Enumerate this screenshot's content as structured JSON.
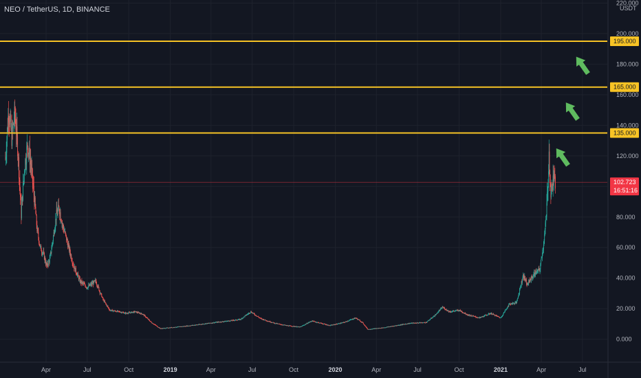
{
  "header": {
    "title": "NEO / TetherUS, 1D, BINANCE"
  },
  "colors": {
    "background": "#131722",
    "grid": "#1e222d",
    "level_line": "#f7c325",
    "candle_up": "#26a69a",
    "candle_down": "#ef5350",
    "price_label": "#f23645",
    "arrow": "#5fbb5f"
  },
  "chart_data": {
    "type": "candlestick",
    "symbol": "NEO / TetherUS",
    "timeframe": "1D",
    "exchange": "BINANCE",
    "currency_label": "USDT",
    "y_ticks": [
      "220.000",
      "200.000",
      "180.000",
      "160.000",
      "140.000",
      "120.000",
      "100.000",
      "80.000",
      "60.000",
      "40.000",
      "20.000",
      "0.000"
    ],
    "ylim": [
      -15,
      222
    ],
    "x_ticks": [
      {
        "label": "Apr",
        "date": "2018-04-01"
      },
      {
        "label": "Jul",
        "date": "2018-07-01"
      },
      {
        "label": "Oct",
        "date": "2018-10-01"
      },
      {
        "label": "2019",
        "date": "2019-01-01",
        "bold": true
      },
      {
        "label": "Apr",
        "date": "2019-04-01"
      },
      {
        "label": "Jul",
        "date": "2019-07-01"
      },
      {
        "label": "Oct",
        "date": "2019-10-01"
      },
      {
        "label": "2020",
        "date": "2020-01-01",
        "bold": true
      },
      {
        "label": "Apr",
        "date": "2020-04-01"
      },
      {
        "label": "Jul",
        "date": "2020-07-01"
      },
      {
        "label": "Oct",
        "date": "2020-10-01"
      },
      {
        "label": "2021",
        "date": "2021-01-01",
        "bold": true
      },
      {
        "label": "Apr",
        "date": "2021-04-01"
      },
      {
        "label": "Jul",
        "date": "2021-07-01"
      }
    ],
    "xlim": [
      "2017-12-20",
      "2021-08-25"
    ],
    "horizontal_levels": [
      {
        "value": 195,
        "label": "195.000"
      },
      {
        "value": 165,
        "label": "165.000"
      },
      {
        "value": 135,
        "label": "135.000"
      }
    ],
    "last_price": {
      "value": 102.723,
      "label": "102.723",
      "countdown": "16:51:16"
    },
    "series": [
      {
        "type": "close_path",
        "points": [
          [
            "2018-01-01",
            118
          ],
          [
            "2018-01-08",
            150
          ],
          [
            "2018-01-15",
            132
          ],
          [
            "2018-01-22",
            148
          ],
          [
            "2018-01-29",
            122
          ],
          [
            "2018-02-05",
            82
          ],
          [
            "2018-02-12",
            112
          ],
          [
            "2018-02-19",
            128
          ],
          [
            "2018-02-26",
            115
          ],
          [
            "2018-03-05",
            95
          ],
          [
            "2018-03-12",
            72
          ],
          [
            "2018-03-19",
            60
          ],
          [
            "2018-03-26",
            56
          ],
          [
            "2018-04-02",
            48
          ],
          [
            "2018-04-09",
            52
          ],
          [
            "2018-04-16",
            65
          ],
          [
            "2018-04-23",
            80
          ],
          [
            "2018-04-30",
            86
          ],
          [
            "2018-05-07",
            75
          ],
          [
            "2018-05-14",
            68
          ],
          [
            "2018-05-21",
            60
          ],
          [
            "2018-06-01",
            48
          ],
          [
            "2018-06-15",
            38
          ],
          [
            "2018-07-01",
            34
          ],
          [
            "2018-07-20",
            38
          ],
          [
            "2018-08-05",
            26
          ],
          [
            "2018-08-20",
            19
          ],
          [
            "2018-09-10",
            18
          ],
          [
            "2018-09-25",
            17
          ],
          [
            "2018-10-15",
            18
          ],
          [
            "2018-11-01",
            16.5
          ],
          [
            "2018-11-20",
            11
          ],
          [
            "2018-12-10",
            7
          ],
          [
            "2018-12-28",
            7.5
          ],
          [
            "2019-02-01",
            8.5
          ],
          [
            "2019-03-01",
            9.5
          ],
          [
            "2019-04-10",
            11
          ],
          [
            "2019-05-10",
            12
          ],
          [
            "2019-06-05",
            13
          ],
          [
            "2019-06-28",
            18
          ],
          [
            "2019-07-20",
            13.5
          ],
          [
            "2019-08-20",
            10.5
          ],
          [
            "2019-09-15",
            9
          ],
          [
            "2019-10-15",
            8
          ],
          [
            "2019-11-10",
            12
          ],
          [
            "2019-12-20",
            9
          ],
          [
            "2020-01-20",
            11
          ],
          [
            "2020-02-15",
            14
          ],
          [
            "2020-03-01",
            11
          ],
          [
            "2020-03-13",
            6.5
          ],
          [
            "2020-04-15",
            7.5
          ],
          [
            "2020-05-15",
            9
          ],
          [
            "2020-06-15",
            10.5
          ],
          [
            "2020-07-20",
            11
          ],
          [
            "2020-08-10",
            16
          ],
          [
            "2020-08-25",
            21
          ],
          [
            "2020-09-10",
            18
          ],
          [
            "2020-10-01",
            19
          ],
          [
            "2020-10-20",
            16
          ],
          [
            "2020-11-15",
            14
          ],
          [
            "2020-12-10",
            17
          ],
          [
            "2021-01-01",
            14
          ],
          [
            "2021-01-20",
            23
          ],
          [
            "2021-02-05",
            24
          ],
          [
            "2021-02-20",
            42
          ],
          [
            "2021-03-01",
            36
          ],
          [
            "2021-03-10",
            40
          ],
          [
            "2021-03-20",
            44
          ],
          [
            "2021-03-28",
            45
          ],
          [
            "2021-04-05",
            60
          ],
          [
            "2021-04-12",
            80
          ],
          [
            "2021-04-18",
            120
          ],
          [
            "2021-04-22",
            95
          ],
          [
            "2021-04-28",
            105
          ],
          [
            "2021-05-02",
            102.723
          ]
        ]
      }
    ],
    "annotations": [
      {
        "type": "arrow",
        "direction": "up-right",
        "near_level": 135
      },
      {
        "type": "arrow",
        "direction": "up-right",
        "near_level": 165
      },
      {
        "type": "arrow",
        "direction": "up-right",
        "near_level": 195
      }
    ]
  }
}
